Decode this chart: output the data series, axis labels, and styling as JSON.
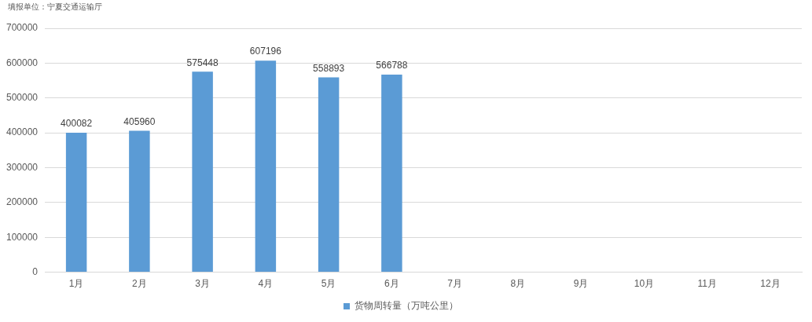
{
  "chart_data": {
    "type": "bar",
    "annotations": [
      "填报单位：宁夏交通运输厅"
    ],
    "categories": [
      "1月",
      "2月",
      "3月",
      "4月",
      "5月",
      "6月",
      "7月",
      "8月",
      "9月",
      "10月",
      "11月",
      "12月"
    ],
    "series": [
      {
        "name": "货物周转量（万吨公里）",
        "color": "#5b9bd5",
        "values": [
          400082,
          405960,
          575448,
          607196,
          558893,
          566788,
          null,
          null,
          null,
          null,
          null,
          null
        ]
      }
    ],
    "ylim": [
      0,
      700000
    ],
    "yticks": [
      0,
      100000,
      200000,
      300000,
      400000,
      500000,
      600000,
      700000
    ],
    "grid": "y",
    "legend": "bottom",
    "data_labels": true
  }
}
